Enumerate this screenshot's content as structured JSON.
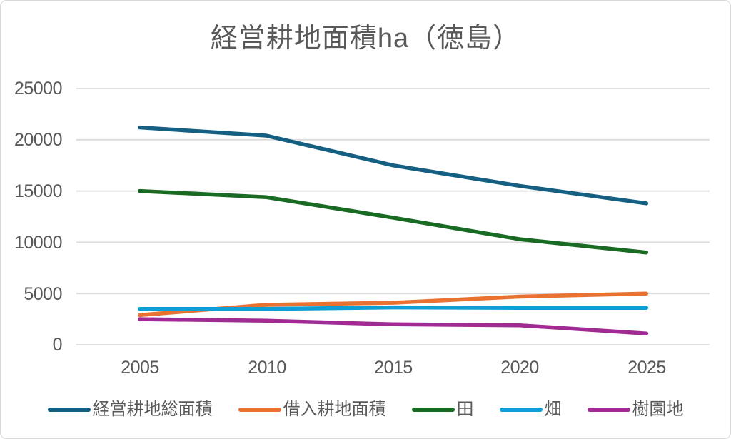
{
  "chart_data": {
    "type": "line",
    "title": "経営耕地面積ha（徳島）",
    "xlabel": "",
    "ylabel": "",
    "categories": [
      "2005",
      "2010",
      "2015",
      "2020",
      "2025"
    ],
    "series": [
      {
        "name": "経営耕地総面積",
        "color": "#156082",
        "values": [
          21200,
          20400,
          17500,
          15500,
          13800
        ]
      },
      {
        "name": "借入耕地面積",
        "color": "#E97132",
        "values": [
          2900,
          3900,
          4100,
          4700,
          5000
        ]
      },
      {
        "name": "田",
        "color": "#196B24",
        "values": [
          15000,
          14400,
          12400,
          10300,
          9000
        ]
      },
      {
        "name": "畑",
        "color": "#0F9ED5",
        "values": [
          3500,
          3500,
          3650,
          3600,
          3600
        ]
      },
      {
        "name": "樹園地",
        "color": "#A02B93",
        "values": [
          2500,
          2350,
          2000,
          1900,
          1100
        ]
      }
    ],
    "ylim": [
      0,
      25000
    ],
    "ytick_values": [
      25000,
      20000,
      15000,
      10000,
      5000,
      0
    ],
    "ytick_labels": [
      "25000",
      "20000",
      "15000",
      "10000",
      "5000",
      "0"
    ],
    "grid": true,
    "gridline_color": "#DCDCDC",
    "legend_position": "bottom"
  }
}
